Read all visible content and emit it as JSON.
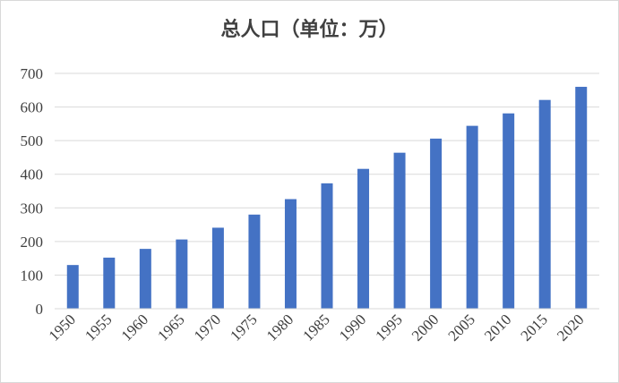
{
  "chart_data": {
    "type": "bar",
    "title": "总人口（单位：万）",
    "xlabel": "",
    "ylabel": "",
    "categories": [
      "1950",
      "1955",
      "1960",
      "1965",
      "1970",
      "1975",
      "1980",
      "1985",
      "1990",
      "1995",
      "2000",
      "2005",
      "2010",
      "2015",
      "2020"
    ],
    "values": [
      130,
      152,
      178,
      206,
      241,
      280,
      326,
      373,
      416,
      464,
      506,
      544,
      581,
      621,
      660
    ],
    "ylim": [
      0,
      700
    ],
    "yticks": [
      0,
      100,
      200,
      300,
      400,
      500,
      600,
      700
    ],
    "grid": true,
    "legend": "none",
    "bar_color": "#4472c4",
    "grid_color": "#d9d9d9",
    "text_color": "#404040"
  }
}
